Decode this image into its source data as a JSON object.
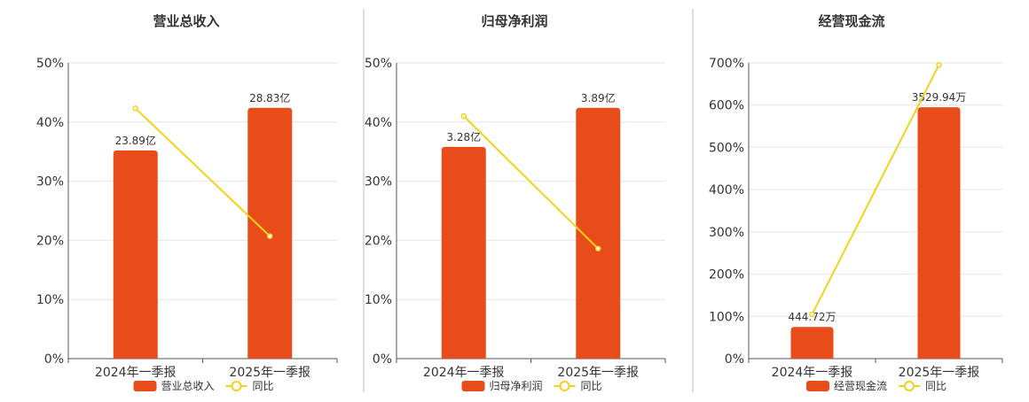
{
  "colors": {
    "bar": "#e84c1a",
    "line": "#f2d21a",
    "grid": "#e6e6e6",
    "axis": "#555555",
    "text": "#333333",
    "divider": "#bdbdbd"
  },
  "chart_data": [
    {
      "type": "bar",
      "title": "营业总收入",
      "categories": [
        "2024年一季报",
        "2025年一季报"
      ],
      "bar_series": {
        "name": "营业总收入",
        "values": [
          35.2,
          42.4
        ],
        "labels": [
          "23.89亿",
          "28.83亿"
        ]
      },
      "line_series": {
        "name": "同比",
        "values": [
          42.3,
          20.7
        ]
      },
      "ylim": [
        0,
        50
      ],
      "yticks": [
        0,
        10,
        20,
        30,
        40,
        50
      ],
      "ytick_labels": [
        "0%",
        "10%",
        "20%",
        "30%",
        "40%",
        "50%"
      ],
      "grid": true,
      "legend": "bottom"
    },
    {
      "type": "bar",
      "title": "归母净利润",
      "categories": [
        "2024年一季报",
        "2025年一季报"
      ],
      "bar_series": {
        "name": "归母净利润",
        "values": [
          35.8,
          42.4
        ],
        "labels": [
          "3.28亿",
          "3.89亿"
        ]
      },
      "line_series": {
        "name": "同比",
        "values": [
          41.0,
          18.6
        ]
      },
      "ylim": [
        0,
        50
      ],
      "yticks": [
        0,
        10,
        20,
        30,
        40,
        50
      ],
      "ytick_labels": [
        "0%",
        "10%",
        "20%",
        "30%",
        "40%",
        "50%"
      ],
      "grid": true,
      "legend": "bottom"
    },
    {
      "type": "bar",
      "title": "经营现金流",
      "categories": [
        "2024年一季报",
        "2025年一季报"
      ],
      "bar_series": {
        "name": "经营现金流",
        "values": [
          75,
          595
        ],
        "labels": [
          "444.72万",
          "3529.94万"
        ]
      },
      "line_series": {
        "name": "同比",
        "values": [
          105,
          695
        ]
      },
      "ylim": [
        0,
        700
      ],
      "yticks": [
        0,
        100,
        200,
        300,
        400,
        500,
        600,
        700
      ],
      "ytick_labels": [
        "0%",
        "100%",
        "200%",
        "300%",
        "400%",
        "500%",
        "600%",
        "700%"
      ],
      "grid": true,
      "legend": "bottom"
    }
  ]
}
